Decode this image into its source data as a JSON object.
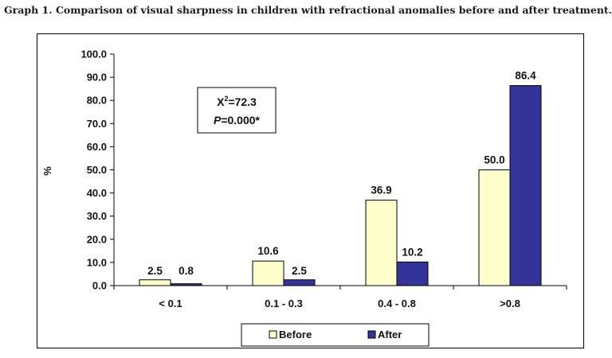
{
  "caption": "Graph 1. Comparison of visual sharpness in children with refractional anomalies before and after treatment.",
  "chart_data": {
    "type": "bar",
    "categories": [
      "< 0.1",
      "0.1 - 0.3",
      "0.4 - 0.8",
      ">0.8"
    ],
    "series": [
      {
        "name": "Before",
        "values": [
          2.5,
          10.6,
          36.9,
          50.0
        ],
        "labels": [
          "2.5",
          "10.6",
          "36.9",
          "50.0"
        ],
        "color": "#FFFFCC"
      },
      {
        "name": "After",
        "values": [
          0.8,
          2.5,
          10.2,
          86.4
        ],
        "labels": [
          "0.8",
          "2.5",
          "10.2",
          "86.4"
        ],
        "color": "#333399"
      }
    ],
    "ylabel": "%",
    "xlabel": "",
    "ylim": [
      0,
      100
    ],
    "yticks": [
      "0.0",
      "10.0",
      "20.0",
      "30.0",
      "40.0",
      "50.0",
      "60.0",
      "70.0",
      "80.0",
      "90.0",
      "100.0"
    ],
    "grid": false,
    "legend_position": "bottom",
    "annotation": {
      "chi_label": "X",
      "chi_exp": "2",
      "chi_value": "=72.3",
      "p_label": "P",
      "p_value": "=0.000*"
    }
  }
}
